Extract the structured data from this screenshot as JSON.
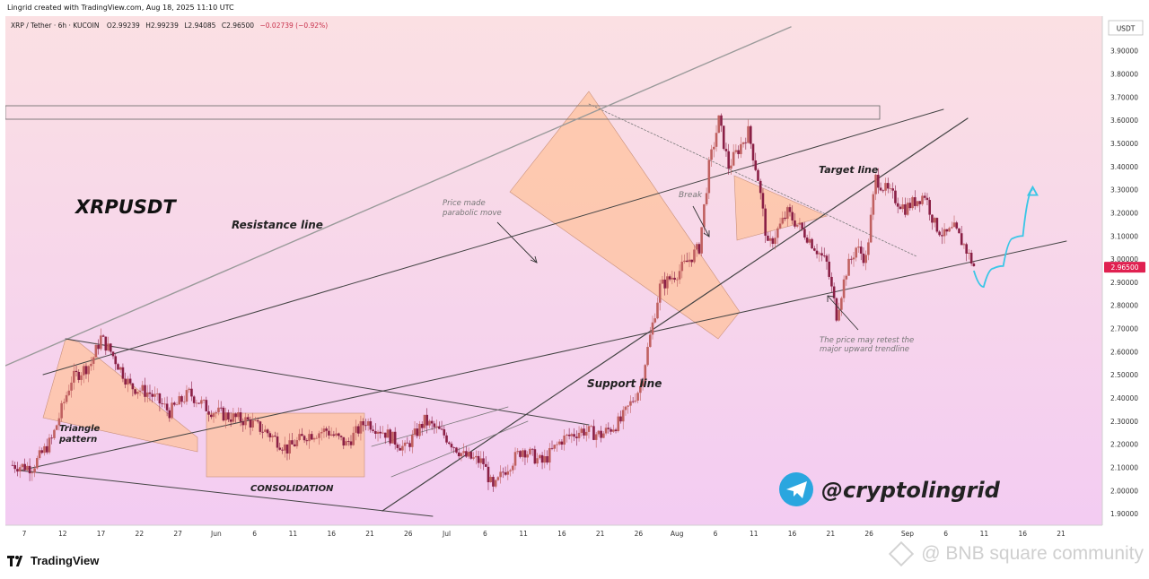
{
  "header": {
    "credit": "Lingrid created with TradingView.com, Aug 18, 2025 11:10 UTC"
  },
  "symbol_info": {
    "pair": "XRP / Tether · 6h · KUCOIN",
    "open": "O2.99239",
    "high": "H2.99239",
    "low": "L2.94085",
    "close": "C2.96500",
    "change": "−0.02739 (−0.92%)"
  },
  "colors": {
    "bg_top": "#fbe0e3",
    "bg_bottom": "#f3ccf2",
    "pattern_fill": "#ffc39e",
    "candle_up": "#c06060",
    "candle_down": "#8a1f45",
    "price_tag": "#e02050",
    "path_line": "#39c6e6",
    "telegram": "#2aa6df"
  },
  "chart_data": {
    "type": "candlestick",
    "currency": "USDT",
    "y_ticks": [
      "1.90000",
      "2.00000",
      "2.10000",
      "2.20000",
      "2.30000",
      "2.40000",
      "2.50000",
      "2.60000",
      "2.70000",
      "2.80000",
      "2.90000",
      "3.00000",
      "3.10000",
      "3.20000",
      "3.30000",
      "3.40000",
      "3.50000",
      "3.60000",
      "3.70000",
      "3.80000",
      "3.90000"
    ],
    "ylim": [
      1.85,
      4.05
    ],
    "x_ticks": [
      "7",
      "12",
      "17",
      "22",
      "27",
      "Jun",
      "6",
      "11",
      "16",
      "21",
      "26",
      "Jul",
      "6",
      "11",
      "16",
      "21",
      "26",
      "Aug",
      "6",
      "11",
      "16",
      "21",
      "26",
      "Sep",
      "6",
      "11",
      "16",
      "21"
    ],
    "last_price": "2.96500",
    "x_range_days": [
      0,
      110
    ],
    "swing_path": [
      [
        0,
        2.11
      ],
      [
        2,
        2.1
      ],
      [
        4,
        2.22
      ],
      [
        6,
        2.48
      ],
      [
        8,
        2.55
      ],
      [
        9,
        2.66
      ],
      [
        10,
        2.6
      ],
      [
        12,
        2.45
      ],
      [
        14,
        2.42
      ],
      [
        16,
        2.34
      ],
      [
        18,
        2.42
      ],
      [
        20,
        2.35
      ],
      [
        22,
        2.32
      ],
      [
        24,
        2.3
      ],
      [
        26,
        2.25
      ],
      [
        28,
        2.18
      ],
      [
        30,
        2.24
      ],
      [
        32,
        2.26
      ],
      [
        34,
        2.2
      ],
      [
        36,
        2.3
      ],
      [
        38,
        2.25
      ],
      [
        40,
        2.18
      ],
      [
        42,
        2.3
      ],
      [
        44,
        2.24
      ],
      [
        46,
        2.15
      ],
      [
        48,
        2.12
      ],
      [
        49,
        2.0
      ],
      [
        50,
        2.08
      ],
      [
        52,
        2.18
      ],
      [
        54,
        2.12
      ],
      [
        56,
        2.22
      ],
      [
        58,
        2.26
      ],
      [
        60,
        2.24
      ],
      [
        62,
        2.3
      ],
      [
        64,
        2.45
      ],
      [
        66,
        2.88
      ],
      [
        68,
        2.95
      ],
      [
        70,
        3.05
      ],
      [
        71,
        3.4
      ],
      [
        72,
        3.6
      ],
      [
        73,
        3.4
      ],
      [
        75,
        3.55
      ],
      [
        76,
        3.35
      ],
      [
        77,
        3.05
      ],
      [
        79,
        3.2
      ],
      [
        81,
        3.1
      ],
      [
        83,
        2.98
      ],
      [
        84,
        2.76
      ],
      [
        85,
        2.95
      ],
      [
        86,
        3.05
      ],
      [
        87,
        3.0
      ],
      [
        88,
        3.35
      ],
      [
        89,
        3.3
      ],
      [
        91,
        3.22
      ],
      [
        93,
        3.28
      ],
      [
        94,
        3.15
      ],
      [
        95,
        3.1
      ],
      [
        96,
        3.13
      ],
      [
        97,
        3.06
      ],
      [
        98,
        2.97
      ]
    ],
    "projection_path": [
      [
        98,
        2.95
      ],
      [
        99,
        2.88
      ],
      [
        100,
        2.96
      ],
      [
        101,
        2.97
      ],
      [
        102,
        3.09
      ],
      [
        103,
        3.1
      ],
      [
        104,
        3.3
      ]
    ]
  },
  "annotations": {
    "title": "XRPUSDT",
    "resistance": "Resistance line",
    "support": "Support line",
    "target": "Target line",
    "triangle_1": "Triangle",
    "triangle_2": "pattern",
    "consolidation": "CONSOLIDATION",
    "parabolic_1": "Price made",
    "parabolic_2": "parabolic move",
    "break": "Break",
    "retest_1": "The price may retest the",
    "retest_2": "major upward trendline"
  },
  "telegram": {
    "handle": "@cryptolingrid"
  },
  "footer": {
    "brand": "TradingView",
    "watermark": "@ BNB square community"
  }
}
